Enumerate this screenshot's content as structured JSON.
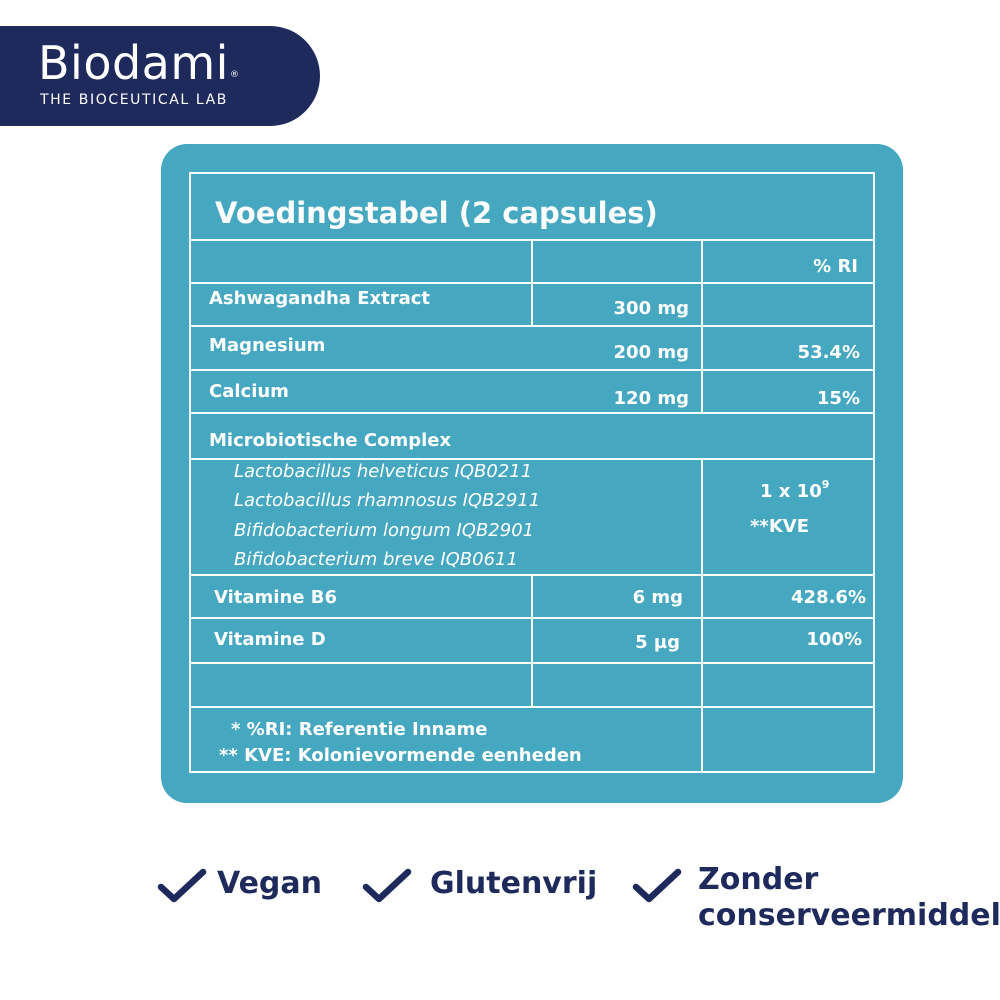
{
  "colors": {
    "brand_navy": "#1f2a5c",
    "teal": "#45a7c0",
    "text_navy": "#1f2a5c",
    "white": "#ffffff"
  },
  "brand": {
    "name": "Biodami",
    "registered": "®",
    "tagline": "THE BIOCEUTICAL LAB"
  },
  "table": {
    "title": "Voedingstabel (2 capsules)",
    "ri_header": "% RI",
    "rows": [
      {
        "name": "Ashwagandha Extract",
        "amount": "300 mg",
        "ri": ""
      },
      {
        "name": "Magnesium",
        "amount": "200 mg",
        "ri": "53.4%"
      },
      {
        "name": "Calcium",
        "amount": "120 mg",
        "ri": "15%"
      }
    ],
    "complex": {
      "name": "Microbiotische Complex",
      "strains": [
        "Lactobacillus helveticus IQB0211",
        "Lactobacillus rhamnosus IQB2911",
        "Bifidobacterium longum IQB2901",
        "Bifidobacterium breve IQB0611"
      ],
      "amount_base": "1 x 10",
      "amount_exp": "9",
      "unit": "**KVE"
    },
    "vitamins": [
      {
        "name": "Vitamine B6",
        "amount": "6 mg",
        "ri": "428.6%"
      },
      {
        "name": "Vitamine D",
        "amount": "5 µg",
        "ri": "100%"
      }
    ],
    "footnotes": [
      "* %RI: Referentie Inname",
      "** KVE: Kolonievormende eenheden"
    ]
  },
  "badges": [
    {
      "label": "Vegan",
      "icon": "checkmark-icon"
    },
    {
      "label": "Glutenvrij",
      "icon": "checkmark-icon"
    },
    {
      "label": "Zonder",
      "label2": "conserveermiddel",
      "icon": "checkmark-icon"
    }
  ]
}
